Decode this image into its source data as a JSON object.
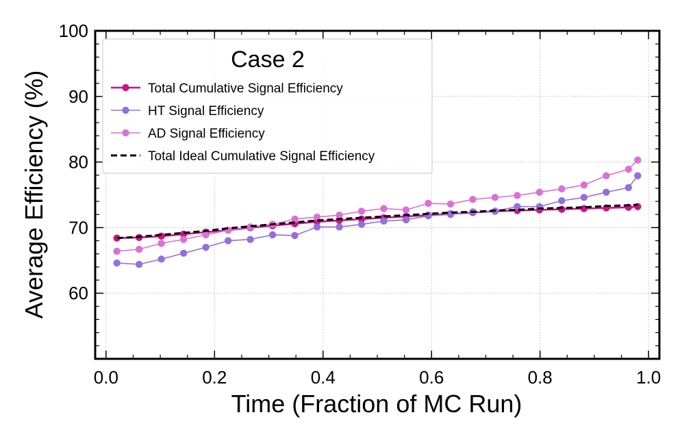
{
  "chart_data": {
    "type": "line",
    "title": "",
    "legend_title": "Case 2",
    "legend_position": "top-left",
    "xlabel": "Time (Fraction of MC Run)",
    "ylabel": "Average Efficiency (%)",
    "xlim": [
      -0.02,
      1.02
    ],
    "ylim": [
      50,
      100
    ],
    "xticks": [
      0.0,
      0.2,
      0.4,
      0.6,
      0.8,
      1.0
    ],
    "xtick_labels": [
      "0.0",
      "0.2",
      "0.4",
      "0.6",
      "0.8",
      "1.0"
    ],
    "yticks": [
      60,
      70,
      80,
      90,
      100
    ],
    "ytick_labels": [
      "60",
      "70",
      "80",
      "90",
      "100"
    ],
    "grid": true,
    "x": [
      0.02,
      0.061,
      0.102,
      0.143,
      0.184,
      0.225,
      0.266,
      0.307,
      0.348,
      0.389,
      0.43,
      0.471,
      0.512,
      0.553,
      0.594,
      0.635,
      0.676,
      0.717,
      0.758,
      0.799,
      0.84,
      0.881,
      0.922,
      0.963,
      0.98
    ],
    "series": [
      {
        "name": "Total Cumulative Signal Efficiency",
        "color": "#c71585",
        "style": "solid",
        "marker": true,
        "values": [
          68.4,
          68.5,
          68.7,
          69.0,
          69.3,
          69.6,
          70.0,
          70.3,
          70.6,
          70.9,
          71.1,
          71.3,
          71.5,
          71.7,
          71.9,
          72.1,
          72.3,
          72.5,
          72.6,
          72.7,
          72.8,
          72.9,
          73.0,
          73.1,
          73.2
        ]
      },
      {
        "name": "HT Signal Efficiency",
        "color": "#9370db",
        "style": "solid",
        "marker": true,
        "values": [
          64.6,
          64.4,
          65.2,
          66.1,
          67.0,
          68.0,
          68.2,
          68.9,
          68.8,
          70.1,
          70.1,
          70.5,
          71.0,
          71.2,
          71.8,
          72.0,
          72.4,
          72.5,
          73.2,
          73.2,
          74.1,
          74.6,
          75.4,
          76.1,
          77.9
        ]
      },
      {
        "name": "AD Signal Efficiency",
        "color": "#da70d6",
        "style": "solid",
        "marker": true,
        "values": [
          66.4,
          66.7,
          67.6,
          68.2,
          68.9,
          69.6,
          70.1,
          70.5,
          71.3,
          71.6,
          71.9,
          72.5,
          72.9,
          72.7,
          73.7,
          73.6,
          74.3,
          74.6,
          74.9,
          75.4,
          75.9,
          76.5,
          77.9,
          78.9,
          80.3
        ]
      },
      {
        "name": "Total Ideal Cumulative Signal Efficiency",
        "color": "#000000",
        "style": "dashed",
        "marker": false,
        "values": [
          68.4,
          68.6,
          68.9,
          69.2,
          69.5,
          69.9,
          70.2,
          70.5,
          70.8,
          71.1,
          71.3,
          71.5,
          71.7,
          71.9,
          72.1,
          72.3,
          72.4,
          72.6,
          72.7,
          72.9,
          73.0,
          73.1,
          73.3,
          73.4,
          73.5
        ]
      }
    ]
  }
}
